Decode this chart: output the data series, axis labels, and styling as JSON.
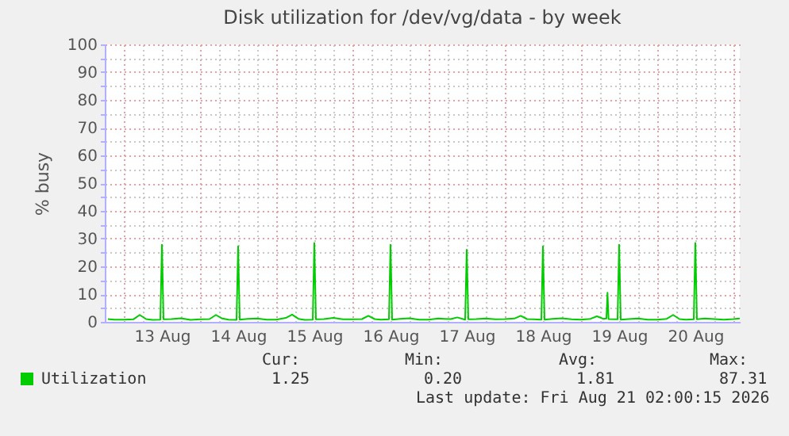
{
  "chart_data": {
    "type": "line",
    "title": "Disk utilization for /dev/vg/data - by week",
    "ylabel": "% busy",
    "xlim": [
      "2026-08-12T18:00",
      "2026-08-21T02:00"
    ],
    "xticks": [
      {
        "value": "2026-08-12T18:00",
        "label": null
      },
      {
        "value": "2026-08-13T00:00",
        "label": null
      },
      {
        "value": "2026-08-13T06:00",
        "label": null
      },
      {
        "value": "2026-08-13T12:00",
        "label": "13 Aug"
      },
      {
        "value": "2026-08-13T18:00",
        "label": null
      },
      {
        "value": "2026-08-14T00:00",
        "label": null
      },
      {
        "value": "2026-08-14T06:00",
        "label": null
      },
      {
        "value": "2026-08-14T12:00",
        "label": "14 Aug"
      },
      {
        "value": "2026-08-14T18:00",
        "label": null
      },
      {
        "value": "2026-08-15T00:00",
        "label": null
      },
      {
        "value": "2026-08-15T06:00",
        "label": null
      },
      {
        "value": "2026-08-15T12:00",
        "label": "15 Aug"
      },
      {
        "value": "2026-08-15T18:00",
        "label": null
      },
      {
        "value": "2026-08-16T00:00",
        "label": null
      },
      {
        "value": "2026-08-16T06:00",
        "label": null
      },
      {
        "value": "2026-08-16T12:00",
        "label": "16 Aug"
      },
      {
        "value": "2026-08-16T18:00",
        "label": null
      },
      {
        "value": "2026-08-17T00:00",
        "label": null
      },
      {
        "value": "2026-08-17T06:00",
        "label": null
      },
      {
        "value": "2026-08-17T12:00",
        "label": "17 Aug"
      },
      {
        "value": "2026-08-17T18:00",
        "label": null
      },
      {
        "value": "2026-08-18T00:00",
        "label": null
      },
      {
        "value": "2026-08-18T06:00",
        "label": null
      },
      {
        "value": "2026-08-18T12:00",
        "label": "18 Aug"
      },
      {
        "value": "2026-08-18T18:00",
        "label": null
      },
      {
        "value": "2026-08-19T00:00",
        "label": null
      },
      {
        "value": "2026-08-19T06:00",
        "label": null
      },
      {
        "value": "2026-08-19T12:00",
        "label": "19 Aug"
      },
      {
        "value": "2026-08-19T18:00",
        "label": null
      },
      {
        "value": "2026-08-20T00:00",
        "label": null
      },
      {
        "value": "2026-08-20T06:00",
        "label": null
      },
      {
        "value": "2026-08-20T12:00",
        "label": "20 Aug"
      },
      {
        "value": "2026-08-20T18:00",
        "label": null
      },
      {
        "value": "2026-08-21T00:00",
        "label": null
      }
    ],
    "ylim": [
      0,
      100
    ],
    "yticks": [
      0,
      {
        "value": 5,
        "label": null
      },
      10,
      {
        "value": 15,
        "label": null
      },
      20,
      {
        "value": 25,
        "label": null
      },
      30,
      {
        "value": 35,
        "label": null
      },
      40,
      {
        "value": 45,
        "label": null
      },
      50,
      {
        "value": 55,
        "label": null
      },
      60,
      {
        "value": 65,
        "label": null
      },
      70,
      {
        "value": 75,
        "label": null
      },
      80,
      {
        "value": 85,
        "label": null
      },
      90,
      {
        "value": 95,
        "label": null
      },
      100
    ],
    "grid": true,
    "legend": "bottom",
    "series": [
      {
        "name": "Utilization",
        "color": "#00cc00",
        "x": [
          "2026-08-12T19:00",
          "2026-08-12T21:00",
          "2026-08-13T00:00",
          "2026-08-13T03:00",
          "2026-08-13T05:00",
          "2026-08-13T07:00",
          "2026-08-13T09:00",
          "2026-08-13T11:30",
          "2026-08-13T12:00",
          "2026-08-13T12:30",
          "2026-08-13T15:00",
          "2026-08-13T18:00",
          "2026-08-13T21:00",
          "2026-08-14T00:00",
          "2026-08-14T03:00",
          "2026-08-14T05:00",
          "2026-08-14T07:00",
          "2026-08-14T09:00",
          "2026-08-14T11:30",
          "2026-08-14T12:00",
          "2026-08-14T12:30",
          "2026-08-14T15:00",
          "2026-08-14T18:00",
          "2026-08-14T21:00",
          "2026-08-15T00:00",
          "2026-08-15T03:00",
          "2026-08-15T05:00",
          "2026-08-15T07:00",
          "2026-08-15T09:00",
          "2026-08-15T11:30",
          "2026-08-15T12:00",
          "2026-08-15T12:30",
          "2026-08-15T15:00",
          "2026-08-15T18:00",
          "2026-08-15T21:00",
          "2026-08-16T00:00",
          "2026-08-16T03:00",
          "2026-08-16T05:00",
          "2026-08-16T07:00",
          "2026-08-16T09:00",
          "2026-08-16T11:30",
          "2026-08-16T12:00",
          "2026-08-16T12:30",
          "2026-08-16T15:00",
          "2026-08-16T18:00",
          "2026-08-16T21:00",
          "2026-08-17T00:00",
          "2026-08-17T03:00",
          "2026-08-17T05:00",
          "2026-08-17T07:00",
          "2026-08-17T09:00",
          "2026-08-17T11:30",
          "2026-08-17T12:00",
          "2026-08-17T12:30",
          "2026-08-17T15:00",
          "2026-08-17T18:00",
          "2026-08-17T21:00",
          "2026-08-18T00:00",
          "2026-08-18T03:00",
          "2026-08-18T05:00",
          "2026-08-18T07:00",
          "2026-08-18T09:00",
          "2026-08-18T11:30",
          "2026-08-18T12:00",
          "2026-08-18T12:30",
          "2026-08-18T15:00",
          "2026-08-18T18:00",
          "2026-08-18T21:00",
          "2026-08-19T00:00",
          "2026-08-19T03:00",
          "2026-08-19T05:00",
          "2026-08-19T07:00",
          "2026-08-19T08:00",
          "2026-08-19T08:20",
          "2026-08-19T08:40",
          "2026-08-19T11:30",
          "2026-08-19T12:00",
          "2026-08-19T12:30",
          "2026-08-19T15:00",
          "2026-08-19T18:00",
          "2026-08-19T21:00",
          "2026-08-20T00:00",
          "2026-08-20T03:00",
          "2026-08-20T05:00",
          "2026-08-20T07:00",
          "2026-08-20T09:00",
          "2026-08-20T11:30",
          "2026-08-20T12:00",
          "2026-08-20T12:30",
          "2026-08-20T15:00",
          "2026-08-20T18:00",
          "2026-08-20T21:00",
          "2026-08-21T00:00",
          "2026-08-21T02:00"
        ],
        "values": [
          1.0,
          0.8,
          0.8,
          0.9,
          2.5,
          1.0,
          0.7,
          0.8,
          27.8,
          0.9,
          1.0,
          1.3,
          0.7,
          0.9,
          1.0,
          2.5,
          1.2,
          0.8,
          0.7,
          27.2,
          0.8,
          1.1,
          1.2,
          0.8,
          0.8,
          1.4,
          2.6,
          1.1,
          0.7,
          0.8,
          28.4,
          0.9,
          1.0,
          1.4,
          0.9,
          0.9,
          1.0,
          2.2,
          1.0,
          0.8,
          0.9,
          27.8,
          0.8,
          1.1,
          1.3,
          0.8,
          0.8,
          1.2,
          1.1,
          1.0,
          1.6,
          0.8,
          26.0,
          0.9,
          1.0,
          1.2,
          0.9,
          1.0,
          1.2,
          2.2,
          1.0,
          0.9,
          0.8,
          27.2,
          0.8,
          1.1,
          1.3,
          0.9,
          0.8,
          1.1,
          2.0,
          1.1,
          1.2,
          10.5,
          1.0,
          0.9,
          27.8,
          0.8,
          1.0,
          1.2,
          0.8,
          0.8,
          1.1,
          2.5,
          1.0,
          0.8,
          0.9,
          28.4,
          0.9,
          1.2,
          1.0,
          0.8,
          1.0,
          1.25
        ]
      }
    ],
    "annotations": [
      "Cur:",
      "Min:",
      "Avg:",
      "Max:",
      "1.25",
      "0.20",
      "1.81",
      "87.31",
      "Last update: Fri Aug 21 02:00:15 2026"
    ]
  }
}
